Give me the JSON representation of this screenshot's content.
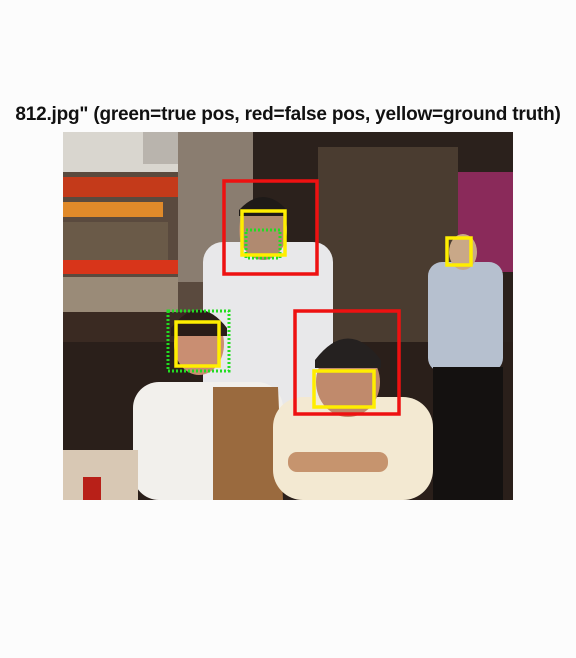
{
  "figure": {
    "title": "812.jpg\" (green=true pos, red=false pos, yellow=ground truth)",
    "legend": {
      "true_positive_color": "#22dd22",
      "false_positive_color": "#ee1111",
      "ground_truth_color": "#ffee00"
    }
  },
  "detections": {
    "true_positive_count": 2,
    "false_positive_count": 2,
    "ground_truth_count": 4
  }
}
